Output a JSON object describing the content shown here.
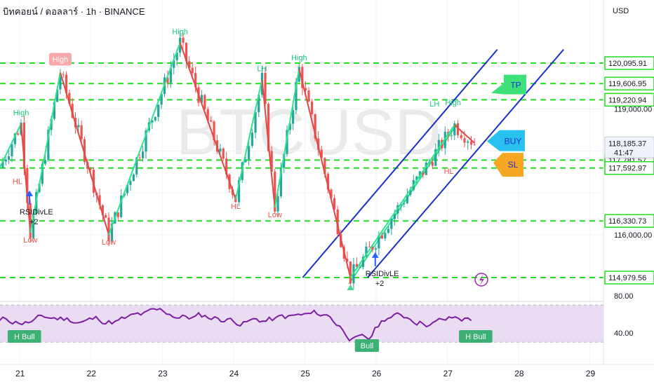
{
  "header": {
    "title": "บิทคอยน์ / ดอลลาร์ · 1h · BINANCE",
    "currency": "USD",
    "watermark": "BTCUSD"
  },
  "colors": {
    "up": "#26a69a",
    "down": "#ef5350",
    "level": "#22dd22",
    "channel": "#1d2fc9",
    "zigzag_up": "#2ee38f",
    "zigzag_down": "#e04848",
    "rsi": "#7b1fa2",
    "rsi_band": "#e9dcf3",
    "pivot_high": "#13c97a",
    "pivot_low": "#ef5350"
  },
  "chart_data": [
    {
      "type": "candlestick",
      "title": "บิทคอยน์ / ดอลลาร์ · 1h · BINANCE",
      "x_ticks": [
        "21",
        "22",
        "23",
        "24",
        "25",
        "26",
        "27",
        "28",
        "29"
      ],
      "y_ticks": [
        "116,000.00",
        "119,000.00"
      ],
      "ylim": [
        114690,
        121000
      ],
      "levels": [
        {
          "value": 120095.91,
          "label": "120,095.91"
        },
        {
          "value": 119606.95,
          "label": "119,606.95"
        },
        {
          "value": 119220.94,
          "label": "119,220.94"
        },
        {
          "value": 117781.57,
          "label": "117,781.57"
        },
        {
          "value": 117592.97,
          "label": "117,592.97"
        },
        {
          "value": 116330.73,
          "label": "116,330.73"
        },
        {
          "value": 114979.56,
          "label": "114,979.56"
        }
      ],
      "current_price": {
        "value": 118185.37,
        "label": "118,185.37",
        "countdown": "41:47"
      },
      "pivots": [
        {
          "x": 21.02,
          "y": 118650,
          "text": "High"
        },
        {
          "x": 20.97,
          "y": 117450,
          "text": "HL"
        },
        {
          "x": 21.15,
          "y": 116050,
          "text": "Low"
        },
        {
          "x": 21.57,
          "y": 119870,
          "text": "High"
        },
        {
          "x": 22.25,
          "y": 116000,
          "text": "Low"
        },
        {
          "x": 23.25,
          "y": 120580,
          "text": "High"
        },
        {
          "x": 24.03,
          "y": 116850,
          "text": "HL"
        },
        {
          "x": 24.4,
          "y": 119700,
          "text": "LH"
        },
        {
          "x": 24.58,
          "y": 116650,
          "text": "Low"
        },
        {
          "x": 24.92,
          "y": 119960,
          "text": "High"
        },
        {
          "x": 26.82,
          "y": 118860,
          "text": "LH"
        },
        {
          "x": 27.08,
          "y": 118890,
          "text": "High"
        },
        {
          "x": 27.02,
          "y": 117690,
          "text": "HL"
        }
      ],
      "signals": [
        {
          "x": 21.0,
          "y": 116620,
          "text": "RSIDivLE",
          "sub": "+2"
        },
        {
          "x": 25.85,
          "y": 115150,
          "text": "RSIDivLE",
          "sub": "+2"
        }
      ],
      "trade_labels": [
        {
          "text": "TP",
          "y": 119550
        },
        {
          "text": "BUY",
          "y": 118230
        },
        {
          "text": "SL",
          "y": 117720
        }
      ]
    },
    {
      "type": "line",
      "indicator": "RSI",
      "y_ticks": [
        "80.00",
        "40.00"
      ],
      "ylim": [
        20,
        90
      ],
      "band": [
        30,
        70
      ],
      "labels": [
        {
          "text": "H Bull",
          "x": 20.95
        },
        {
          "text": "Bull",
          "x": 25.82
        },
        {
          "text": "H Bull",
          "x": 27.28
        }
      ]
    }
  ]
}
